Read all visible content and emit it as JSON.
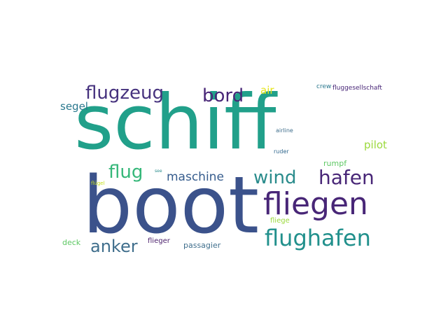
{
  "word_cloud": {
    "colors": {
      "teal": "#21A08A",
      "blue": "#3B528B",
      "purple": "#482677",
      "dark_purple": "#4A1F6B",
      "steel": "#3F6E8C",
      "cyan": "#2A8C8C",
      "yellow": "#E4E418",
      "light_green": "#9BD93C",
      "green": "#5DC863",
      "mint": "#7AD151",
      "background": "#FFFFFF"
    },
    "words": {
      "schiff": {
        "text": "schiff",
        "color": "#21A08A"
      },
      "boot": {
        "text": "boot",
        "color": "#3B528B"
      },
      "fliegen": {
        "text": "fliegen",
        "color": "#482677"
      },
      "flughafen": {
        "text": "flughafen",
        "color": "#21908C"
      },
      "hafen": {
        "text": "hafen",
        "color": "#482677"
      },
      "flugzeug": {
        "text": "flugzeug",
        "color": "#46327E"
      },
      "bord": {
        "text": "bord",
        "color": "#482677"
      },
      "flug": {
        "text": "flug",
        "color": "#35B779"
      },
      "wind": {
        "text": "wind",
        "color": "#2A8C8C"
      },
      "anker": {
        "text": "anker",
        "color": "#3F6E8C"
      },
      "maschine": {
        "text": "maschine",
        "color": "#365C8D"
      },
      "air": {
        "text": "air",
        "color": "#E4E418"
      },
      "segel": {
        "text": "segel",
        "color": "#2A788E"
      },
      "pilot": {
        "text": "pilot",
        "color": "#9BD93C"
      },
      "rumpf": {
        "text": "rumpf",
        "color": "#5DC863"
      },
      "passagier": {
        "text": "passagier",
        "color": "#3F6E8C"
      },
      "deck": {
        "text": "deck",
        "color": "#5DC863"
      },
      "flieger": {
        "text": "flieger",
        "color": "#4A1F6B"
      },
      "fliege": {
        "text": "fliege",
        "color": "#9BD93C"
      },
      "crew": {
        "text": "crew",
        "color": "#2A788E"
      },
      "fluggesellschaft": {
        "text": "fluggesellschaft",
        "color": "#482677"
      },
      "airline": {
        "text": "airline",
        "color": "#3F6E8C"
      },
      "ruder": {
        "text": "ruder",
        "color": "#31688E"
      },
      "see": {
        "text": "see",
        "color": "#2A8C8C"
      },
      "flugel": {
        "text": "flügel",
        "color": "#C7E020"
      }
    }
  }
}
